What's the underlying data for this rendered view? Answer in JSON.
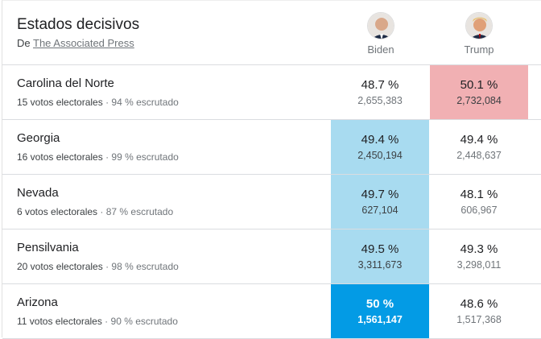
{
  "header": {
    "title": "Estados decisivos",
    "source_prefix": "De",
    "source_link": "The Associated Press"
  },
  "candidates": [
    {
      "name": "Biden",
      "avatar_icon": "biden-photo"
    },
    {
      "name": "Trump",
      "avatar_icon": "trump-photo"
    }
  ],
  "colors": {
    "biden_lead": "#a8dbf0",
    "biden_strong": "#039be5",
    "trump_lead": "#f1b0b3"
  },
  "rows": [
    {
      "state": "Carolina del Norte",
      "electoral": "15 votos electorales",
      "reported": "94 % escrutado",
      "biden_pct": "48.7 %",
      "biden_votes": "2,655,383",
      "trump_pct": "50.1 %",
      "trump_votes": "2,732,084",
      "leader": "trump"
    },
    {
      "state": "Georgia",
      "electoral": "16 votos electorales",
      "reported": "99 % escrutado",
      "biden_pct": "49.4 %",
      "biden_votes": "2,450,194",
      "trump_pct": "49.4 %",
      "trump_votes": "2,448,637",
      "leader": "biden"
    },
    {
      "state": "Nevada",
      "electoral": "6 votos electorales",
      "reported": "87 % escrutado",
      "biden_pct": "49.7 %",
      "biden_votes": "627,104",
      "trump_pct": "48.1 %",
      "trump_votes": "606,967",
      "leader": "biden"
    },
    {
      "state": "Pensilvania",
      "electoral": "20 votos electorales",
      "reported": "98 % escrutado",
      "biden_pct": "49.5 %",
      "biden_votes": "3,311,673",
      "trump_pct": "49.3 %",
      "trump_votes": "3,298,011",
      "leader": "biden"
    },
    {
      "state": "Arizona",
      "electoral": "11 votos electorales",
      "reported": "90 % escrutado",
      "biden_pct": "50 %",
      "biden_votes": "1,561,147",
      "trump_pct": "48.6 %",
      "trump_votes": "1,517,368",
      "leader": "biden-called"
    }
  ]
}
